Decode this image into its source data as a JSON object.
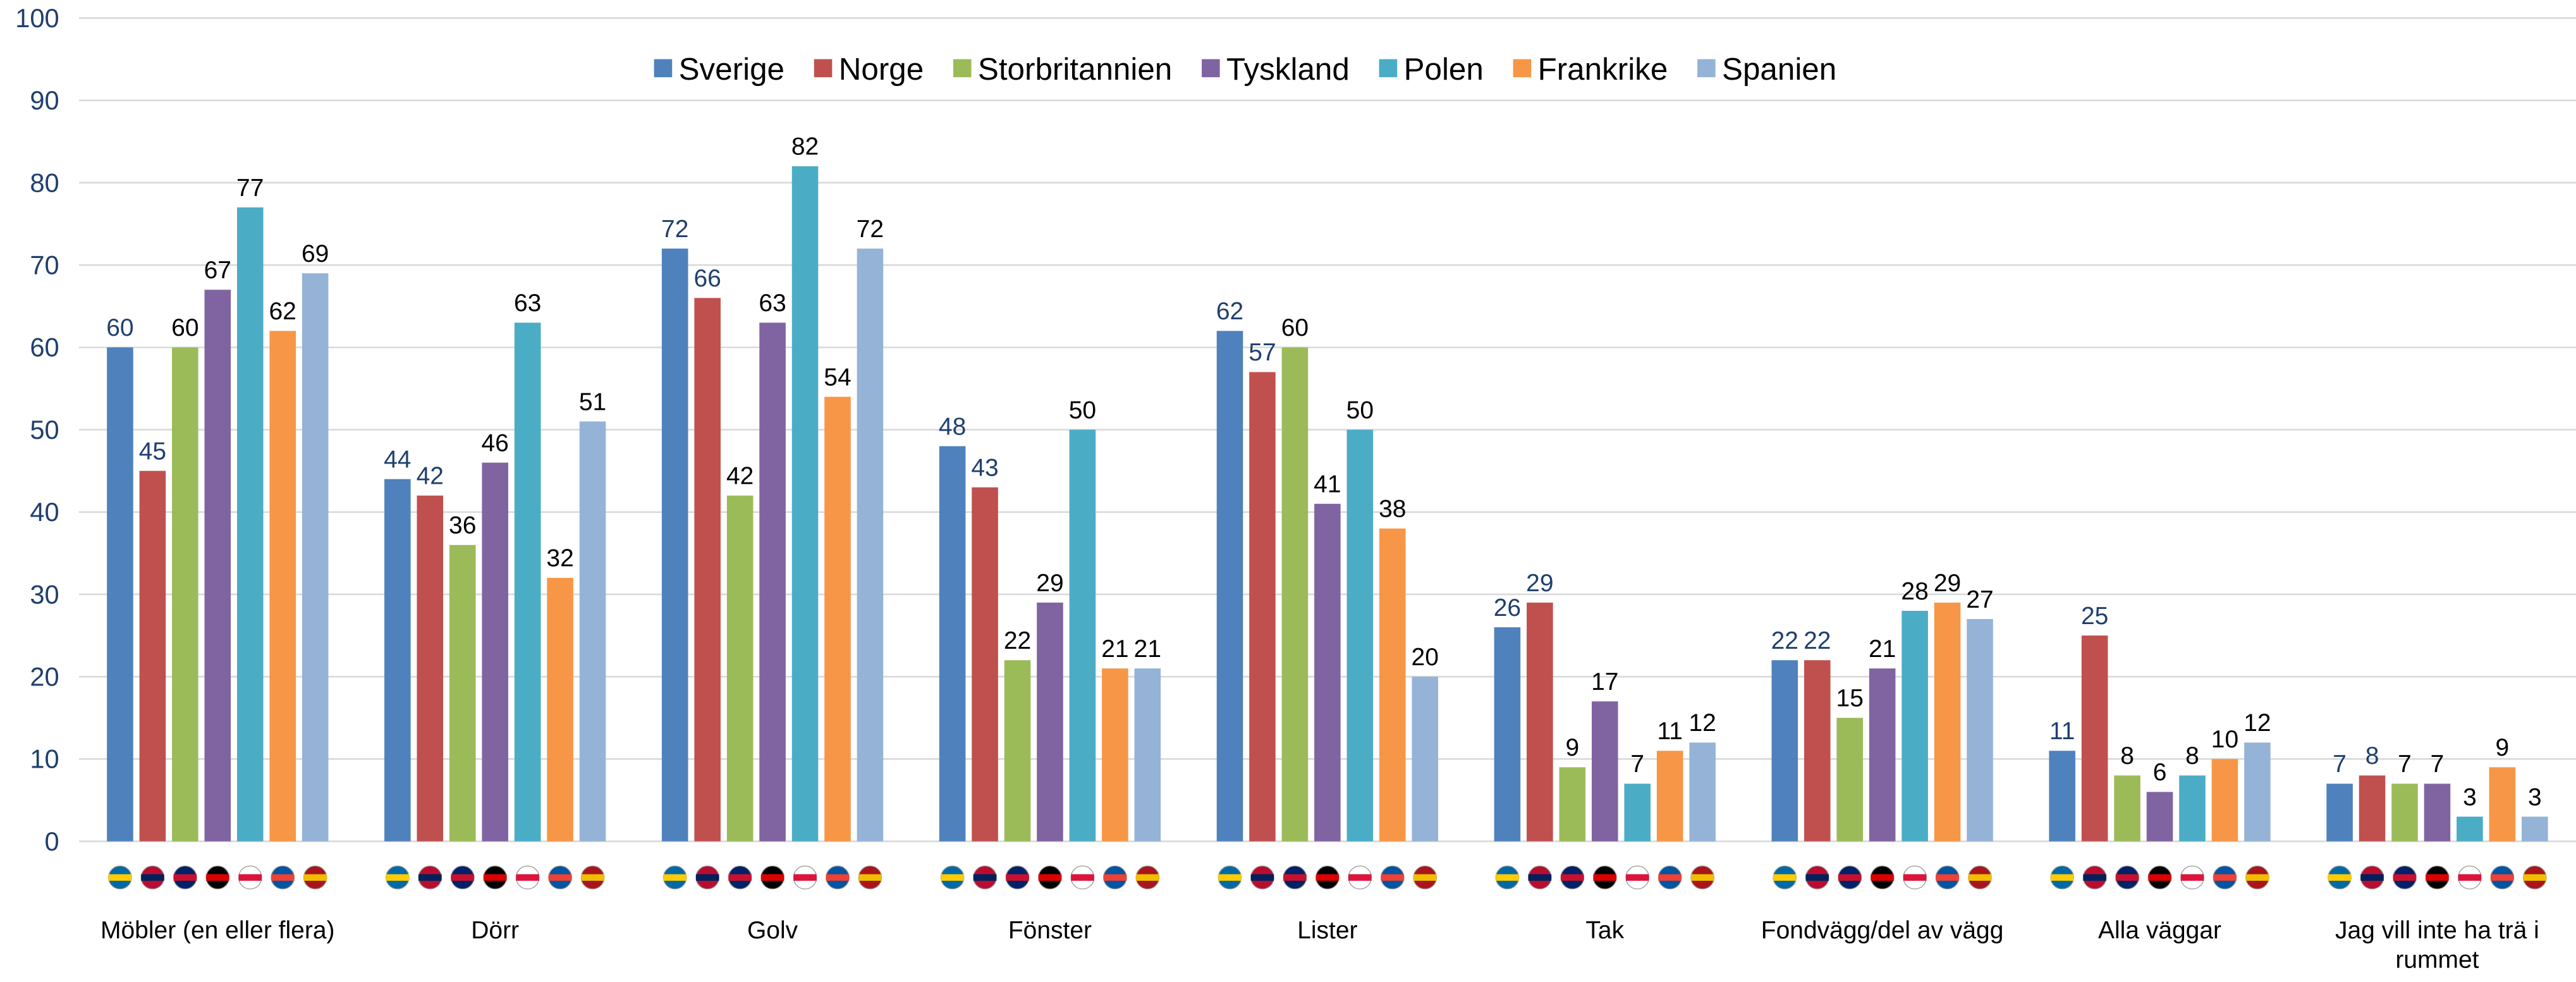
{
  "chart_data": {
    "type": "bar",
    "categories": [
      "Möbler (en eller flera)",
      "Dörr",
      "Golv",
      "Fönster",
      "Lister",
      "Tak",
      "Fondvägg/del av vägg",
      "Alla väggar",
      "Jag vill inte ha trä i rummet"
    ],
    "series": [
      {
        "name": "Sverige",
        "color": "#4f81bd",
        "label_color": "#1f3f6e",
        "values": [
          60,
          44,
          72,
          48,
          62,
          26,
          22,
          11,
          7
        ]
      },
      {
        "name": "Norge",
        "color": "#c0504d",
        "label_color": "#1f3f6e",
        "values": [
          45,
          42,
          66,
          43,
          57,
          29,
          22,
          25,
          8
        ]
      },
      {
        "name": "Storbritannien",
        "color": "#9bbb59",
        "label_color": "#000000",
        "values": [
          60,
          36,
          42,
          22,
          60,
          9,
          15,
          8,
          7
        ]
      },
      {
        "name": "Tyskland",
        "color": "#8064a2",
        "label_color": "#000000",
        "values": [
          67,
          46,
          63,
          29,
          41,
          17,
          21,
          6,
          7
        ]
      },
      {
        "name": "Polen",
        "color": "#4bacc6",
        "label_color": "#000000",
        "values": [
          77,
          63,
          82,
          50,
          50,
          7,
          28,
          8,
          3
        ]
      },
      {
        "name": "Frankrike",
        "color": "#f79646",
        "label_color": "#000000",
        "values": [
          62,
          32,
          54,
          21,
          38,
          11,
          29,
          10,
          9
        ]
      },
      {
        "name": "Spanien",
        "color": "#95b3d7",
        "label_color": "#000000",
        "values": [
          69,
          51,
          72,
          21,
          20,
          12,
          27,
          12,
          3
        ]
      }
    ],
    "ylim": [
      0,
      100
    ],
    "yticks": [
      0,
      10,
      20,
      30,
      40,
      50,
      60,
      70,
      80,
      90,
      100
    ],
    "grid": true,
    "legend": "top"
  }
}
